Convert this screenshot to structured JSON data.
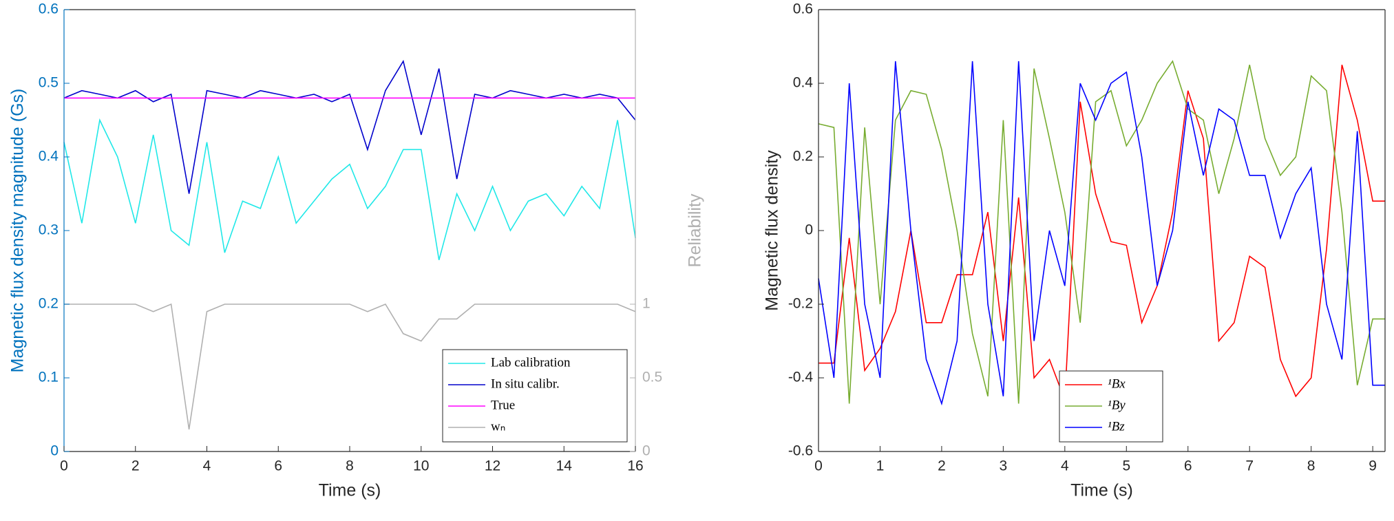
{
  "chart_data": [
    {
      "type": "line",
      "xlabel": "Time (s)",
      "ylabel": "Magnetic flux density magnitude (Gs)",
      "y2label": "Reliability",
      "xlim": [
        0,
        16
      ],
      "xticks": [
        0,
        2,
        4,
        6,
        8,
        10,
        12,
        14,
        16
      ],
      "ylim": [
        0,
        0.6
      ],
      "yticks": [
        0,
        0.1,
        0.2,
        0.3,
        0.4,
        0.5,
        0.6
      ],
      "y2lim": [
        0,
        3
      ],
      "y2ticks": [
        0,
        0.5,
        1
      ],
      "ycolor": "#0072bd",
      "y2color": "#b0b0b0",
      "grid": false,
      "legend": "lower right",
      "series": [
        {
          "name": "Lab calibration",
          "color": "#20e8e8",
          "x": [
            0,
            0.5,
            1,
            1.5,
            2,
            2.5,
            3,
            3.5,
            4,
            4.5,
            5,
            5.5,
            6,
            6.5,
            7,
            7.5,
            8,
            8.5,
            9,
            9.5,
            10,
            10.5,
            11,
            11.5,
            12,
            12.5,
            13,
            13.5,
            14,
            14.5,
            15,
            15.5,
            16
          ],
          "values": [
            0.42,
            0.31,
            0.45,
            0.4,
            0.31,
            0.43,
            0.3,
            0.28,
            0.42,
            0.27,
            0.34,
            0.33,
            0.4,
            0.31,
            0.34,
            0.37,
            0.39,
            0.33,
            0.36,
            0.41,
            0.41,
            0.26,
            0.35,
            0.3,
            0.36,
            0.3,
            0.34,
            0.35,
            0.32,
            0.36,
            0.33,
            0.45,
            0.29
          ]
        },
        {
          "name": "In situ calibr.",
          "color": "#0000cc",
          "x": [
            0,
            0.5,
            1,
            1.5,
            2,
            2.5,
            3,
            3.5,
            4,
            4.5,
            5,
            5.5,
            6,
            6.5,
            7,
            7.5,
            8,
            8.5,
            9,
            9.5,
            10,
            10.5,
            11,
            11.5,
            12,
            12.5,
            13,
            13.5,
            14,
            14.5,
            15,
            15.5,
            16
          ],
          "values": [
            0.48,
            0.49,
            0.485,
            0.48,
            0.49,
            0.475,
            0.485,
            0.35,
            0.49,
            0.485,
            0.48,
            0.49,
            0.485,
            0.48,
            0.485,
            0.475,
            0.485,
            0.41,
            0.49,
            0.53,
            0.43,
            0.52,
            0.37,
            0.485,
            0.48,
            0.49,
            0.485,
            0.48,
            0.485,
            0.48,
            0.485,
            0.48,
            0.45
          ]
        },
        {
          "name": "True",
          "color": "#ff00ff",
          "x": [
            0,
            16
          ],
          "values": [
            0.48,
            0.48
          ]
        },
        {
          "name": "wₙ",
          "color": "#b0b0b0",
          "axis": "y2",
          "x": [
            0,
            0.5,
            1,
            1.5,
            2,
            2.5,
            3,
            3.5,
            4,
            4.5,
            5,
            5.5,
            6,
            6.5,
            7,
            7.5,
            8,
            8.5,
            9,
            9.5,
            10,
            10.5,
            11,
            11.5,
            12,
            12.5,
            13,
            13.5,
            14,
            14.5,
            15,
            15.5,
            16
          ],
          "values": [
            1,
            1,
            1,
            1,
            1,
            0.95,
            1,
            0.15,
            0.95,
            1,
            1,
            1,
            1,
            1,
            1,
            1,
            1,
            0.95,
            1,
            0.8,
            0.75,
            0.9,
            0.9,
            1,
            1,
            1,
            1,
            1,
            1,
            1,
            1,
            1,
            0.95
          ]
        }
      ]
    },
    {
      "type": "line",
      "xlabel": "Time (s)",
      "ylabel": "Magnetic flux density",
      "xlim": [
        0,
        9.2
      ],
      "xticks": [
        0,
        1,
        2,
        3,
        4,
        5,
        6,
        7,
        8,
        9
      ],
      "ylim": [
        -0.6,
        0.6
      ],
      "yticks": [
        -0.6,
        -0.4,
        -0.2,
        0,
        0.2,
        0.4,
        0.6
      ],
      "grid": false,
      "legend": "lower left",
      "series": [
        {
          "name": "¹Bx",
          "color": "#ff0000",
          "x": [
            0,
            0.25,
            0.5,
            0.75,
            1,
            1.25,
            1.5,
            1.75,
            2,
            2.25,
            2.5,
            2.75,
            3,
            3.25,
            3.5,
            3.75,
            4,
            4.25,
            4.5,
            4.75,
            5,
            5.25,
            5.5,
            5.75,
            6,
            6.25,
            6.5,
            6.75,
            7,
            7.25,
            7.5,
            7.75,
            8,
            8.25,
            8.5,
            8.75,
            9,
            9.2
          ],
          "values": [
            -0.36,
            -0.36,
            -0.02,
            -0.38,
            -0.32,
            -0.22,
            0.0,
            -0.25,
            -0.25,
            -0.12,
            -0.12,
            0.05,
            -0.3,
            0.09,
            -0.4,
            -0.35,
            -0.46,
            0.35,
            0.1,
            -0.03,
            -0.04,
            -0.25,
            -0.15,
            0.05,
            0.38,
            0.25,
            -0.3,
            -0.25,
            -0.07,
            -0.1,
            -0.35,
            -0.45,
            -0.4,
            -0.05,
            0.45,
            0.3,
            0.08,
            0.08
          ]
        },
        {
          "name": "¹By",
          "color": "#77ac30",
          "x": [
            0,
            0.25,
            0.5,
            0.75,
            1,
            1.25,
            1.5,
            1.75,
            2,
            2.25,
            2.5,
            2.75,
            3,
            3.25,
            3.5,
            3.75,
            4,
            4.25,
            4.5,
            4.75,
            5,
            5.25,
            5.5,
            5.75,
            6,
            6.25,
            6.5,
            6.75,
            7,
            7.25,
            7.5,
            7.75,
            8,
            8.25,
            8.5,
            8.75,
            9,
            9.2
          ],
          "values": [
            0.29,
            0.28,
            -0.47,
            0.28,
            -0.2,
            0.3,
            0.38,
            0.37,
            0.22,
            0.0,
            -0.28,
            -0.45,
            0.3,
            -0.47,
            0.44,
            0.25,
            0.05,
            -0.25,
            0.35,
            0.38,
            0.23,
            0.3,
            0.4,
            0.46,
            0.33,
            0.3,
            0.1,
            0.25,
            0.45,
            0.25,
            0.15,
            0.2,
            0.42,
            0.38,
            0.05,
            -0.42,
            -0.24,
            -0.24
          ]
        },
        {
          "name": "¹Bz",
          "color": "#0000ff",
          "x": [
            0,
            0.25,
            0.5,
            0.75,
            1,
            1.25,
            1.5,
            1.75,
            2,
            2.25,
            2.5,
            2.75,
            3,
            3.25,
            3.5,
            3.75,
            4,
            4.25,
            4.5,
            4.75,
            5,
            5.25,
            5.5,
            5.75,
            6,
            6.25,
            6.5,
            6.75,
            7,
            7.25,
            7.5,
            7.75,
            8,
            8.25,
            8.5,
            8.75,
            9,
            9.2
          ],
          "values": [
            -0.13,
            -0.4,
            0.4,
            -0.2,
            -0.4,
            0.46,
            0.0,
            -0.35,
            -0.47,
            -0.3,
            0.46,
            -0.2,
            -0.45,
            0.46,
            -0.3,
            0.0,
            -0.15,
            0.4,
            0.3,
            0.4,
            0.43,
            0.2,
            -0.15,
            0.0,
            0.35,
            0.15,
            0.33,
            0.3,
            0.15,
            0.15,
            -0.02,
            0.1,
            0.17,
            -0.2,
            -0.35,
            0.27,
            -0.42,
            -0.42
          ]
        }
      ]
    }
  ]
}
